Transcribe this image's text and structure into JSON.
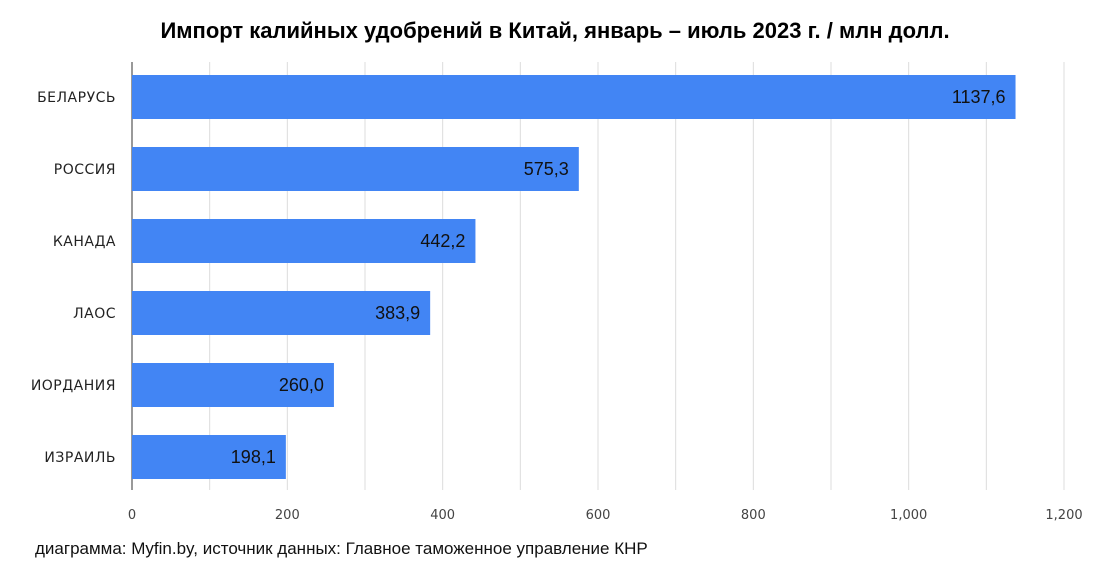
{
  "chart_data": {
    "type": "bar",
    "orientation": "horizontal",
    "title": "Импорт калийных удобрений в Китай, январь – июль 2023 г. / млн долл.",
    "categories": [
      "БЕЛАРУСЬ",
      "РОССИЯ",
      "КАНАДА",
      "ЛАОС",
      "ИОРДАНИЯ",
      "ИЗРАИЛЬ"
    ],
    "values": [
      1137.6,
      575.3,
      442.2,
      383.9,
      260.0,
      198.1
    ],
    "value_labels": [
      "1137,6",
      "575,3",
      "442,2",
      "383,9",
      "260,0",
      "198,1"
    ],
    "xlim": [
      0,
      1200
    ],
    "ticks": [
      0,
      200,
      400,
      600,
      800,
      1000,
      1200
    ],
    "tick_labels": [
      "0",
      "200",
      "400",
      "600",
      "800",
      "1,000",
      "1,200"
    ],
    "bar_color": "#4285f4",
    "grid": true,
    "source": "диаграмма: Myfin.by, источник данных: Главное таможенное управление КНР"
  }
}
